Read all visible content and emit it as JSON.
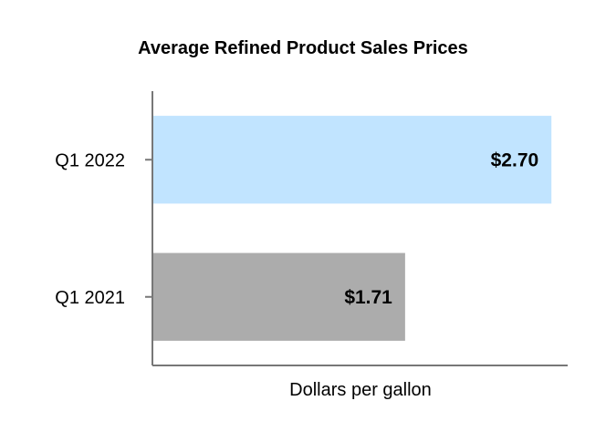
{
  "chart_data": {
    "type": "bar",
    "orientation": "horizontal",
    "title": "Average Refined Product Sales Prices",
    "xlabel": "Dollars per gallon",
    "ylabel": "",
    "categories": [
      "Q1 2022",
      "Q1 2021"
    ],
    "values": [
      2.7,
      1.71
    ],
    "value_labels": [
      "$2.70",
      "$1.71"
    ],
    "colors": [
      "#c1e4ff",
      "#acacac"
    ],
    "xlim": [
      0,
      2.81
    ],
    "grid": false,
    "legend": "none"
  },
  "colors": {
    "axis": "#777777",
    "text": "#000000"
  }
}
